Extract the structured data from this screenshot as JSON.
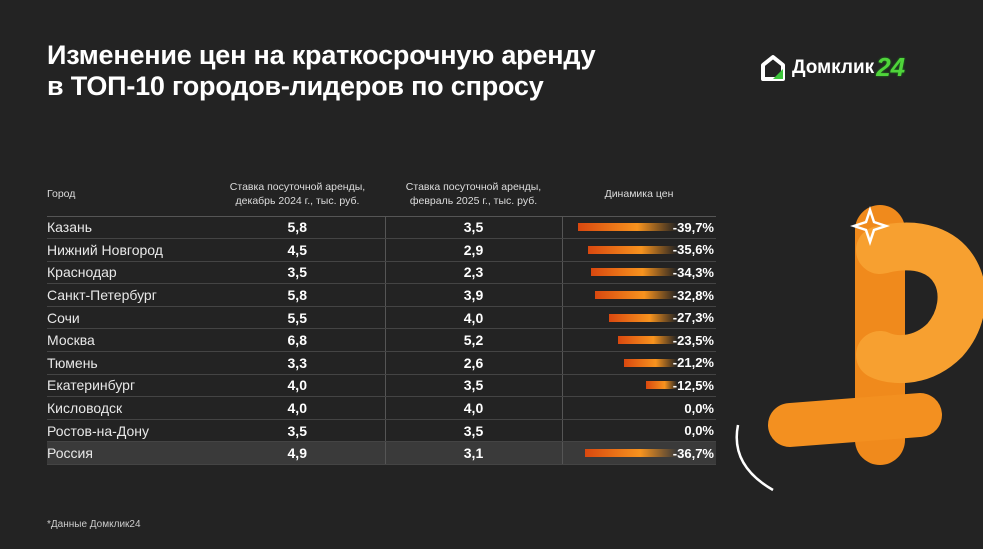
{
  "title": [
    "Изменение цен на краткосрочную аренду",
    "в ТОП-10 городов-лидеров по спросу"
  ],
  "logo": {
    "text": "Домклик",
    "num": "24"
  },
  "table": {
    "headers": [
      "Город",
      "Ставка посуточной аренды, декабрь 2024 г., тыс. руб.",
      "Ставка посуточной аренды, февраль 2025 г., тыс. руб.",
      "Динамика цен"
    ],
    "rows": [
      [
        "Казань",
        "5,8",
        "3,5",
        "-39,7%"
      ],
      [
        "Нижний Новгород",
        "4,5",
        "2,9",
        "-35,6%"
      ],
      [
        "Краснодар",
        "3,5",
        "2,3",
        "-34,3%"
      ],
      [
        "Санкт-Петербург",
        "5,8",
        "3,9",
        "-32,8%"
      ],
      [
        "Сочи",
        "5,5",
        "4,0",
        "-27,3%"
      ],
      [
        "Москва",
        "6,8",
        "5,2",
        "-23,5%"
      ],
      [
        "Тюмень",
        "3,3",
        "2,6",
        "-21,2%"
      ],
      [
        "Екатеринбург",
        "4,0",
        "3,5",
        "-12,5%"
      ],
      [
        "Кисловодск",
        "4,0",
        "4,0",
        "0,0%"
      ],
      [
        "Ростов-на-Дону",
        "3,5",
        "3,5",
        "0,0%"
      ]
    ],
    "total": [
      "Россия",
      "4,9",
      "3,1",
      "-36,7%"
    ],
    "change_values": [
      -39.7,
      -35.6,
      -34.3,
      -32.8,
      -27.3,
      -23.5,
      -21.2,
      -12.5,
      0,
      0
    ],
    "total_change": -36.7
  },
  "note": "*Данные Домклик24",
  "colors": {
    "accent": "#f7931e",
    "logo_green": "#4fd43a",
    "background": "#232323"
  }
}
